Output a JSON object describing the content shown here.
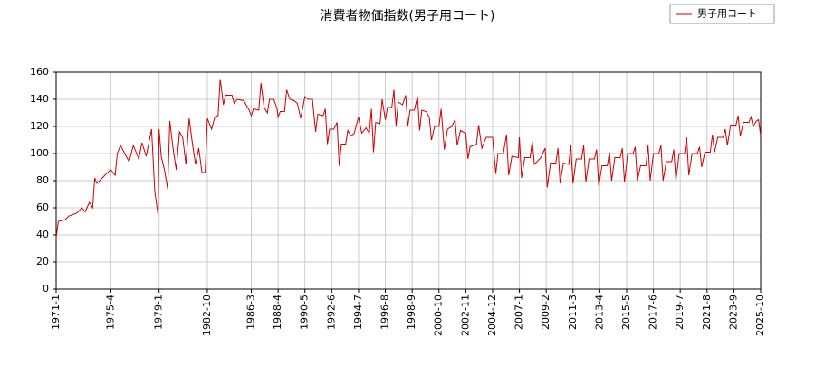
{
  "chart_data": {
    "type": "line",
    "title": "消費者物価指数(男子用コート)",
    "x": [
      "1971-1",
      "1971-3",
      "1971-9",
      "1972-1",
      "1972-8",
      "1973-1",
      "1973-4",
      "1973-8",
      "1973-11",
      "1974-1",
      "1974-3",
      "1974-8",
      "1975-1",
      "1975-4",
      "1975-8",
      "1975-10",
      "1976-1",
      "1976-5",
      "1976-9",
      "1977-1",
      "1977-4",
      "1977-6",
      "1977-9",
      "1978-1",
      "1978-6",
      "1978-9",
      "1978-12",
      "1979-1",
      "1979-3",
      "1979-6",
      "1979-9",
      "1979-11",
      "1980-2",
      "1980-5",
      "1980-8",
      "1980-11",
      "1981-2",
      "1981-5",
      "1981-8",
      "1981-11",
      "1982-2",
      "1982-5",
      "1982-8",
      "1982-10",
      "1983-2",
      "1983-5",
      "1983-8",
      "1983-10",
      "1984-1",
      "1984-3",
      "1984-9",
      "1984-11",
      "1985-2",
      "1985-8",
      "1986-1",
      "1986-3",
      "1986-5",
      "1986-10",
      "1986-12",
      "1987-3",
      "1987-6",
      "1987-8",
      "1987-12",
      "1988-3",
      "1988-4",
      "1988-6",
      "1988-10",
      "1988-12",
      "1989-3",
      "1989-7",
      "1989-10",
      "1990-1",
      "1990-5",
      "1990-8",
      "1990-12",
      "1991-3",
      "1991-5",
      "1991-10",
      "1991-12",
      "1992-2",
      "1992-4",
      "1992-8",
      "1992-11",
      "1993-1",
      "1993-3",
      "1993-7",
      "1993-9",
      "1993-12",
      "1994-3",
      "1994-7",
      "1994-10",
      "1995-2",
      "1995-5",
      "1995-7",
      "1995-9",
      "1995-11",
      "1996-3",
      "1996-5",
      "1996-8",
      "1996-10",
      "1997-2",
      "1997-4",
      "1997-6",
      "1997-8",
      "1997-12",
      "1998-3",
      "1998-5",
      "1998-7",
      "1998-11",
      "1999-2",
      "1999-4",
      "1999-6",
      "1999-10",
      "2000-1",
      "2000-3",
      "2000-6",
      "2000-10",
      "2000-12",
      "2001-3",
      "2001-6",
      "2001-10",
      "2002-1",
      "2002-3",
      "2002-6",
      "2002-11",
      "2003-1",
      "2003-3",
      "2003-9",
      "2003-11",
      "2004-2",
      "2004-6",
      "2004-12",
      "2005-3",
      "2005-5",
      "2005-10",
      "2006-1",
      "2006-3",
      "2006-6",
      "2006-12",
      "2007-1",
      "2007-3",
      "2007-6",
      "2007-11",
      "2008-1",
      "2008-3",
      "2008-9",
      "2009-1",
      "2009-3",
      "2009-6",
      "2009-11",
      "2010-1",
      "2010-3",
      "2010-6",
      "2010-11",
      "2011-1",
      "2011-3",
      "2011-6",
      "2011-11",
      "2012-1",
      "2012-3",
      "2012-6",
      "2012-11",
      "2013-1",
      "2013-3",
      "2013-6",
      "2013-11",
      "2014-1",
      "2014-3",
      "2014-6",
      "2014-11",
      "2015-1",
      "2015-3",
      "2015-6",
      "2015-11",
      "2016-1",
      "2016-3",
      "2016-6",
      "2016-11",
      "2017-1",
      "2017-3",
      "2017-6",
      "2017-11",
      "2018-1",
      "2018-3",
      "2018-6",
      "2018-11",
      "2019-1",
      "2019-3",
      "2019-6",
      "2019-11",
      "2020-1",
      "2020-3",
      "2020-6",
      "2020-11",
      "2021-1",
      "2021-3",
      "2021-6",
      "2021-11",
      "2022-1",
      "2022-3",
      "2022-6",
      "2022-11",
      "2023-1",
      "2023-3",
      "2023-6",
      "2023-11",
      "2024-1",
      "2024-3",
      "2024-6",
      "2024-11",
      "2025-1",
      "2025-3",
      "2025-6",
      "2025-8",
      "2025-10"
    ],
    "series": [
      {
        "name": "男子用コート",
        "color": "#cc0000",
        "values": [
          38,
          50,
          51,
          54,
          56,
          60,
          57,
          64,
          60,
          82,
          78,
          82,
          86,
          88,
          84,
          100,
          106,
          100,
          94,
          106,
          100,
          96,
          108,
          98,
          118,
          72,
          55,
          118,
          98,
          88,
          74,
          124,
          104,
          88,
          116,
          112,
          92,
          126,
          108,
          92,
          104,
          86,
          86,
          126,
          118,
          127,
          128,
          155,
          136,
          143,
          143,
          137,
          140,
          139,
          132,
          128,
          133,
          132,
          152,
          134,
          130,
          140,
          140,
          133,
          127,
          131,
          131,
          147,
          140,
          139,
          137,
          126,
          142,
          140,
          140,
          116,
          129,
          128,
          133,
          107,
          118,
          118,
          123,
          91,
          107,
          107,
          117,
          113,
          115,
          127,
          115,
          119,
          115,
          133,
          101,
          123,
          122,
          140,
          125,
          134,
          134,
          147,
          120,
          138,
          136,
          143,
          120,
          132,
          132,
          142,
          117,
          132,
          131,
          127,
          110,
          120,
          120,
          133,
          103,
          118,
          120,
          125,
          106,
          117,
          115,
          96,
          105,
          107,
          121,
          104,
          112,
          112,
          85,
          100,
          100,
          114,
          84,
          98,
          97,
          112,
          82,
          97,
          97,
          109,
          92,
          97,
          104,
          75,
          93,
          93,
          104,
          78,
          93,
          92,
          106,
          78,
          96,
          96,
          106,
          79,
          96,
          96,
          103,
          76,
          91,
          91,
          101,
          80,
          97,
          97,
          104,
          79,
          100,
          100,
          105,
          80,
          91,
          91,
          106,
          80,
          100,
          100,
          106,
          80,
          94,
          94,
          103,
          80,
          100,
          100,
          112,
          84,
          100,
          100,
          105,
          90,
          101,
          101,
          114,
          101,
          112,
          112,
          118,
          106,
          121,
          121,
          128,
          113,
          123,
          123,
          127,
          120,
          124,
          125,
          113
        ]
      }
    ],
    "xlim": [
      "1971-1",
      "2025-10"
    ],
    "xticks": [
      "1971-1",
      "1975-4",
      "1979-1",
      "1982-10",
      "1986-3",
      "1988-4",
      "1990-5",
      "1992-6",
      "1994-7",
      "1996-8",
      "1998-9",
      "2000-10",
      "2002-11",
      "2004-12",
      "2007-1",
      "2009-2",
      "2011-3",
      "2013-4",
      "2015-5",
      "2017-6",
      "2019-7",
      "2021-8",
      "2023-9",
      "2025-10"
    ],
    "ylim": [
      0,
      160
    ],
    "yticks": [
      0,
      20,
      40,
      60,
      80,
      100,
      120,
      140,
      160
    ],
    "grid": true,
    "legend": "upper right"
  }
}
